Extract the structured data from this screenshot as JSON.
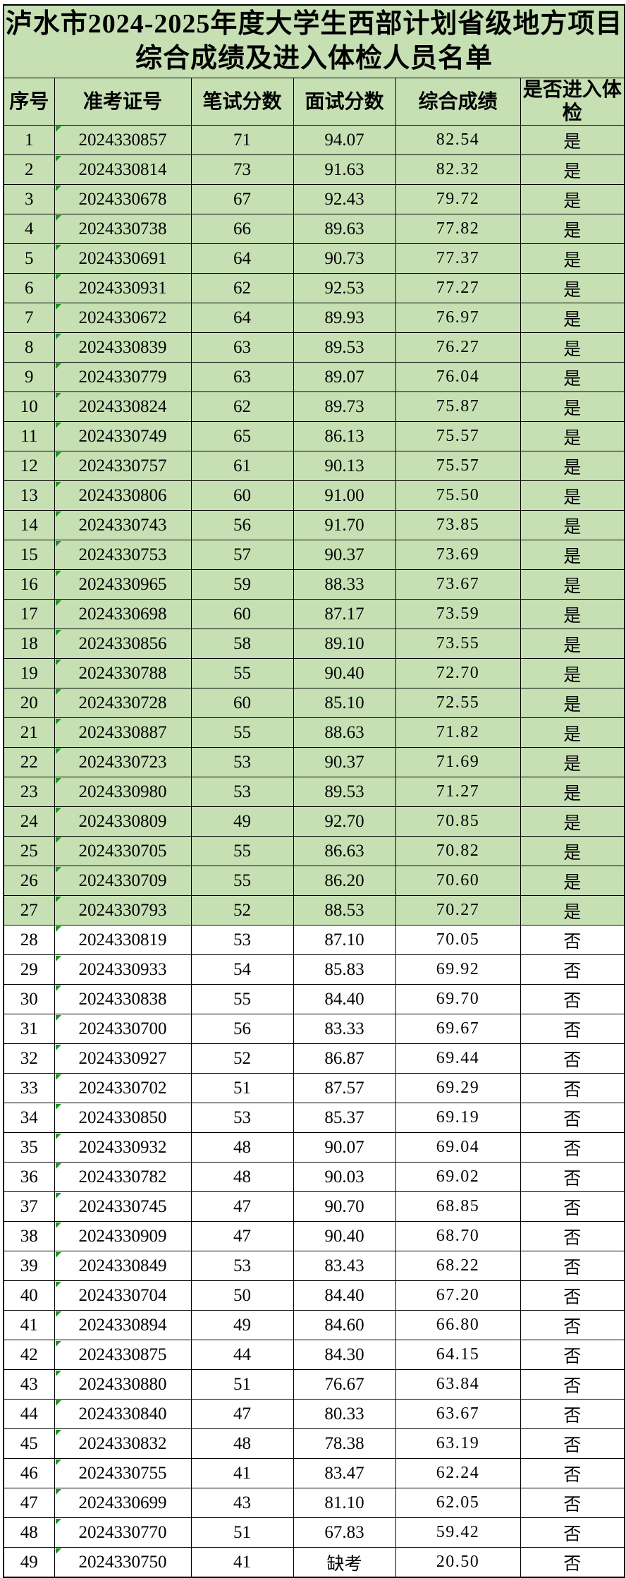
{
  "header": {
    "title_line1": "泸水市2024-2025年度大学生西部计划省级地方项目",
    "title_line2": "综合成绩及进入体检人员名单"
  },
  "table": {
    "columns": [
      "序号",
      "准考证号",
      "笔试分数",
      "面试分数",
      "综合成绩",
      "是否进入体检"
    ],
    "qualified_value": "是",
    "unqualified_value": "否",
    "absent_label": "缺考",
    "rows": [
      [
        "1",
        "2024330857",
        "71",
        "94.07",
        "82.54",
        "是"
      ],
      [
        "2",
        "2024330814",
        "73",
        "91.63",
        "82.32",
        "是"
      ],
      [
        "3",
        "2024330678",
        "67",
        "92.43",
        "79.72",
        "是"
      ],
      [
        "4",
        "2024330738",
        "66",
        "89.63",
        "77.82",
        "是"
      ],
      [
        "5",
        "2024330691",
        "64",
        "90.73",
        "77.37",
        "是"
      ],
      [
        "6",
        "2024330931",
        "62",
        "92.53",
        "77.27",
        "是"
      ],
      [
        "7",
        "2024330672",
        "64",
        "89.93",
        "76.97",
        "是"
      ],
      [
        "8",
        "2024330839",
        "63",
        "89.53",
        "76.27",
        "是"
      ],
      [
        "9",
        "2024330779",
        "63",
        "89.07",
        "76.04",
        "是"
      ],
      [
        "10",
        "2024330824",
        "62",
        "89.73",
        "75.87",
        "是"
      ],
      [
        "11",
        "2024330749",
        "65",
        "86.13",
        "75.57",
        "是"
      ],
      [
        "12",
        "2024330757",
        "61",
        "90.13",
        "75.57",
        "是"
      ],
      [
        "13",
        "2024330806",
        "60",
        "91.00",
        "75.50",
        "是"
      ],
      [
        "14",
        "2024330743",
        "56",
        "91.70",
        "73.85",
        "是"
      ],
      [
        "15",
        "2024330753",
        "57",
        "90.37",
        "73.69",
        "是"
      ],
      [
        "16",
        "2024330965",
        "59",
        "88.33",
        "73.67",
        "是"
      ],
      [
        "17",
        "2024330698",
        "60",
        "87.17",
        "73.59",
        "是"
      ],
      [
        "18",
        "2024330856",
        "58",
        "89.10",
        "73.55",
        "是"
      ],
      [
        "19",
        "2024330788",
        "55",
        "90.40",
        "72.70",
        "是"
      ],
      [
        "20",
        "2024330728",
        "60",
        "85.10",
        "72.55",
        "是"
      ],
      [
        "21",
        "2024330887",
        "55",
        "88.63",
        "71.82",
        "是"
      ],
      [
        "22",
        "2024330723",
        "53",
        "90.37",
        "71.69",
        "是"
      ],
      [
        "23",
        "2024330980",
        "53",
        "89.53",
        "71.27",
        "是"
      ],
      [
        "24",
        "2024330809",
        "49",
        "92.70",
        "70.85",
        "是"
      ],
      [
        "25",
        "2024330705",
        "55",
        "86.63",
        "70.82",
        "是"
      ],
      [
        "26",
        "2024330709",
        "55",
        "86.20",
        "70.60",
        "是"
      ],
      [
        "27",
        "2024330793",
        "52",
        "88.53",
        "70.27",
        "是"
      ],
      [
        "28",
        "2024330819",
        "53",
        "87.10",
        "70.05",
        "否"
      ],
      [
        "29",
        "2024330933",
        "54",
        "85.83",
        "69.92",
        "否"
      ],
      [
        "30",
        "2024330838",
        "55",
        "84.40",
        "69.70",
        "否"
      ],
      [
        "31",
        "2024330700",
        "56",
        "83.33",
        "69.67",
        "否"
      ],
      [
        "32",
        "2024330927",
        "52",
        "86.87",
        "69.44",
        "否"
      ],
      [
        "33",
        "2024330702",
        "51",
        "87.57",
        "69.29",
        "否"
      ],
      [
        "34",
        "2024330850",
        "53",
        "85.37",
        "69.19",
        "否"
      ],
      [
        "35",
        "2024330932",
        "48",
        "90.07",
        "69.04",
        "否"
      ],
      [
        "36",
        "2024330782",
        "48",
        "90.03",
        "69.02",
        "否"
      ],
      [
        "37",
        "2024330745",
        "47",
        "90.70",
        "68.85",
        "否"
      ],
      [
        "38",
        "2024330909",
        "47",
        "90.40",
        "68.70",
        "否"
      ],
      [
        "39",
        "2024330849",
        "53",
        "83.43",
        "68.22",
        "否"
      ],
      [
        "40",
        "2024330704",
        "50",
        "84.40",
        "67.20",
        "否"
      ],
      [
        "41",
        "2024330894",
        "49",
        "84.60",
        "66.80",
        "否"
      ],
      [
        "42",
        "2024330875",
        "44",
        "84.30",
        "64.15",
        "否"
      ],
      [
        "43",
        "2024330880",
        "51",
        "76.67",
        "63.84",
        "否"
      ],
      [
        "44",
        "2024330840",
        "47",
        "80.33",
        "63.67",
        "否"
      ],
      [
        "45",
        "2024330832",
        "48",
        "78.38",
        "63.19",
        "否"
      ],
      [
        "46",
        "2024330755",
        "41",
        "83.47",
        "62.24",
        "否"
      ],
      [
        "47",
        "2024330699",
        "43",
        "81.10",
        "62.05",
        "否"
      ],
      [
        "48",
        "2024330770",
        "51",
        "67.83",
        "59.42",
        "否"
      ],
      [
        "49",
        "2024330750",
        "41",
        "缺考",
        "20.50",
        "否"
      ]
    ]
  },
  "colors": {
    "qualified_row_bg": "#c6e0b4",
    "unqualified_row_bg": "#ffffff",
    "grid_border": "#000000",
    "text_flag_triangle": "#1f9522"
  }
}
